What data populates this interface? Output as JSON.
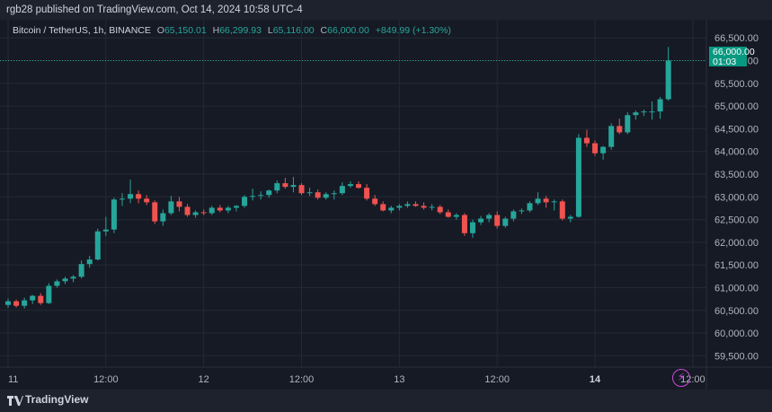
{
  "header": {
    "published": "rgb28 published on TradingView.com, Oct 14, 2024 10:58 UTC-4"
  },
  "legend": {
    "symbol": "Bitcoin / TetherUS, 1h, BINANCE",
    "open_label": "O",
    "open": "65,150.01",
    "high_label": "H",
    "high": "66,299.93",
    "low_label": "L",
    "low": "65,116.00",
    "close_label": "C",
    "close": "66,000.00",
    "change": "+849.99 (+1.30%)"
  },
  "price_tag": {
    "price": "66,000.00",
    "countdown": "01:03"
  },
  "footer": {
    "brand": "TradingView"
  },
  "colors": {
    "up": "#26a69a",
    "down": "#ef5350",
    "background": "#161a25",
    "grid": "#252934",
    "axis_text": "#b2b5be"
  },
  "icons": {
    "logo": "tradingview-logo-icon",
    "bolt": "lightning-bolt-icon"
  },
  "chart_data": {
    "type": "candlestick",
    "title": "Bitcoin / TetherUS, 1h, BINANCE",
    "ylim": [
      59250,
      66900
    ],
    "y_ticks": [
      59500,
      60000,
      60500,
      61000,
      61500,
      62000,
      62500,
      63000,
      63500,
      64000,
      64500,
      65000,
      65500,
      66000,
      66500
    ],
    "y_tick_labels": [
      "59,500.00",
      "60,000.00",
      "60,500.00",
      "61,000.00",
      "61,500.00",
      "62,000.00",
      "62,500.00",
      "63,000.00",
      "63,500.00",
      "64,000.00",
      "64,500.00",
      "65,000.00",
      "65,500.00",
      "66,000.00",
      "66,500.00"
    ],
    "x_ticks": [
      {
        "label": "11",
        "index": 0
      },
      {
        "label": "12:00",
        "index": 12
      },
      {
        "label": "12",
        "index": 24
      },
      {
        "label": "12:00",
        "index": 36
      },
      {
        "label": "13",
        "index": 48
      },
      {
        "label": "12:00",
        "index": 60
      },
      {
        "label": "14",
        "index": 72
      },
      {
        "label": "12:00",
        "index": 84
      }
    ],
    "last_price": 66000,
    "grid": true,
    "candles": [
      [
        60620,
        60760,
        60560,
        60700
      ],
      [
        60700,
        60740,
        60560,
        60600
      ],
      [
        60600,
        60780,
        60540,
        60720
      ],
      [
        60720,
        60840,
        60640,
        60820
      ],
      [
        60820,
        60880,
        60620,
        60660
      ],
      [
        60660,
        61100,
        60640,
        61040
      ],
      [
        61040,
        61180,
        61000,
        61140
      ],
      [
        61140,
        61240,
        61080,
        61200
      ],
      [
        61200,
        61280,
        61120,
        61240
      ],
      [
        61240,
        61600,
        61200,
        61520
      ],
      [
        61520,
        61700,
        61440,
        61620
      ],
      [
        61620,
        62300,
        61600,
        62240
      ],
      [
        62240,
        62560,
        62140,
        62280
      ],
      [
        62280,
        62980,
        62200,
        62940
      ],
      [
        62940,
        63080,
        62800,
        62960
      ],
      [
        62960,
        63380,
        62860,
        63060
      ],
      [
        63060,
        63140,
        62860,
        62960
      ],
      [
        62960,
        63040,
        62820,
        62880
      ],
      [
        62880,
        62920,
        62400,
        62460
      ],
      [
        62460,
        62720,
        62360,
        62640
      ],
      [
        62640,
        63020,
        62600,
        62900
      ],
      [
        62900,
        63000,
        62680,
        62780
      ],
      [
        62780,
        62840,
        62560,
        62600
      ],
      [
        62600,
        62700,
        62540,
        62660
      ],
      [
        62660,
        62720,
        62600,
        62640
      ],
      [
        62640,
        62800,
        62600,
        62760
      ],
      [
        62760,
        62820,
        62660,
        62700
      ],
      [
        62700,
        62800,
        62640,
        62760
      ],
      [
        62760,
        62820,
        62680,
        62800
      ],
      [
        62800,
        63040,
        62760,
        63000
      ],
      [
        63000,
        63180,
        62920,
        63020
      ],
      [
        63020,
        63120,
        62940,
        63040
      ],
      [
        63040,
        63160,
        62980,
        63140
      ],
      [
        63140,
        63360,
        63080,
        63300
      ],
      [
        63300,
        63420,
        63180,
        63220
      ],
      [
        63220,
        63440,
        63100,
        63260
      ],
      [
        63260,
        63300,
        63040,
        63080
      ],
      [
        63080,
        63200,
        63020,
        63100
      ],
      [
        63100,
        63160,
        62940,
        62980
      ],
      [
        62980,
        63100,
        62940,
        63060
      ],
      [
        63060,
        63140,
        62940,
        63080
      ],
      [
        63080,
        63320,
        63040,
        63240
      ],
      [
        63240,
        63340,
        63200,
        63280
      ],
      [
        63280,
        63340,
        63180,
        63200
      ],
      [
        63200,
        63280,
        62920,
        62960
      ],
      [
        62960,
        63040,
        62800,
        62840
      ],
      [
        62840,
        62900,
        62680,
        62700
      ],
      [
        62700,
        62800,
        62640,
        62760
      ],
      [
        62760,
        62840,
        62700,
        62800
      ],
      [
        62800,
        62900,
        62760,
        62840
      ],
      [
        62840,
        62900,
        62780,
        62800
      ],
      [
        62800,
        62880,
        62720,
        62760
      ],
      [
        62760,
        62840,
        62700,
        62780
      ],
      [
        62780,
        62820,
        62620,
        62660
      ],
      [
        62660,
        62720,
        62540,
        62560
      ],
      [
        62560,
        62640,
        62500,
        62600
      ],
      [
        62600,
        62640,
        62140,
        62200
      ],
      [
        62200,
        62500,
        62100,
        62440
      ],
      [
        62440,
        62580,
        62380,
        62520
      ],
      [
        62520,
        62640,
        62440,
        62600
      ],
      [
        62600,
        62680,
        62300,
        62360
      ],
      [
        62360,
        62560,
        62320,
        62520
      ],
      [
        62520,
        62720,
        62460,
        62680
      ],
      [
        62680,
        62740,
        62620,
        62700
      ],
      [
        62700,
        62900,
        62660,
        62860
      ],
      [
        62860,
        63100,
        62820,
        62960
      ],
      [
        62960,
        63020,
        62760,
        62880
      ],
      [
        62880,
        62940,
        62700,
        62900
      ],
      [
        62900,
        62940,
        62480,
        62520
      ],
      [
        62520,
        62600,
        62440,
        62560
      ],
      [
        62560,
        64380,
        62540,
        64300
      ],
      [
        64300,
        64480,
        64100,
        64180
      ],
      [
        64180,
        64240,
        63900,
        63960
      ],
      [
        63960,
        64120,
        63820,
        64100
      ],
      [
        64100,
        64620,
        64040,
        64560
      ],
      [
        64560,
        64720,
        64380,
        64420
      ],
      [
        64420,
        64860,
        64380,
        64800
      ],
      [
        64800,
        64900,
        64700,
        64860
      ],
      [
        64860,
        64920,
        64780,
        64880
      ],
      [
        64880,
        65100,
        64700,
        64880
      ],
      [
        64880,
        65200,
        64720,
        65150
      ],
      [
        65150,
        66300,
        65116,
        66000
      ]
    ]
  }
}
